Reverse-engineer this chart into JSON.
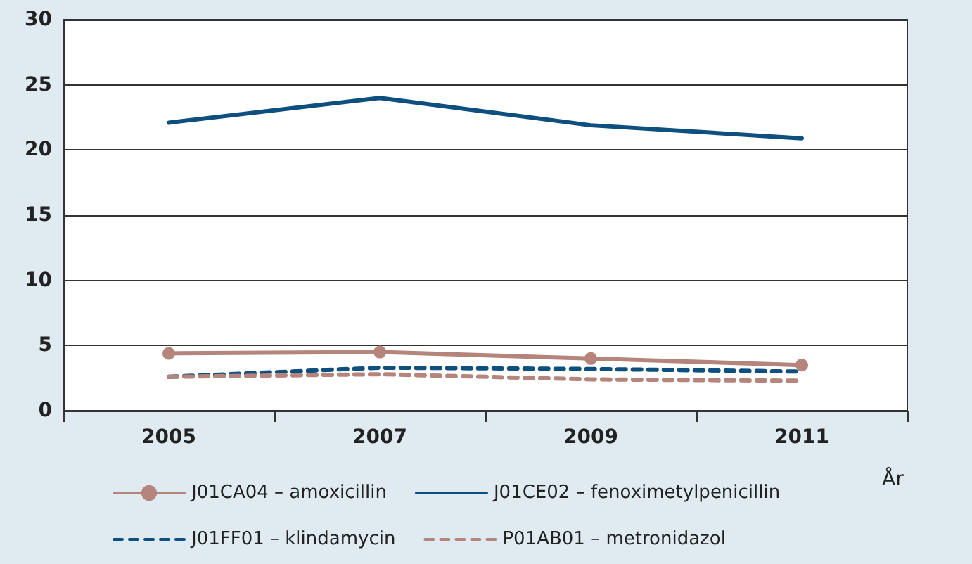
{
  "chart_data": {
    "type": "line",
    "xlabel": "År",
    "categories": [
      "2005",
      "2007",
      "2009",
      "2011"
    ],
    "series": [
      {
        "name": "J01CA04 – amoxicillin",
        "color": "#b5847a",
        "values": [
          4.4,
          4.5,
          4.0,
          3.5
        ],
        "marker": "circle",
        "line_style": "solid"
      },
      {
        "name": "J01CE02 – fenoximetylpenicillin",
        "color": "#0d4f7e",
        "values": [
          22.1,
          24.0,
          21.9,
          20.9
        ],
        "marker": "none",
        "line_style": "solid"
      },
      {
        "name": "J01FF01 – klindamycin",
        "color": "#0d4f7e",
        "values": [
          2.6,
          3.3,
          3.2,
          3.0
        ],
        "marker": "none",
        "line_style": "dashed"
      },
      {
        "name": "P01AB01 – metronidazol",
        "color": "#b5847a",
        "values": [
          2.6,
          2.8,
          2.4,
          2.3
        ],
        "marker": "none",
        "line_style": "dashed"
      }
    ],
    "ylim": [
      0,
      30
    ],
    "yticks": [
      0,
      5,
      10,
      15,
      20,
      25,
      30
    ],
    "grid": "y",
    "legend": "bottom"
  }
}
